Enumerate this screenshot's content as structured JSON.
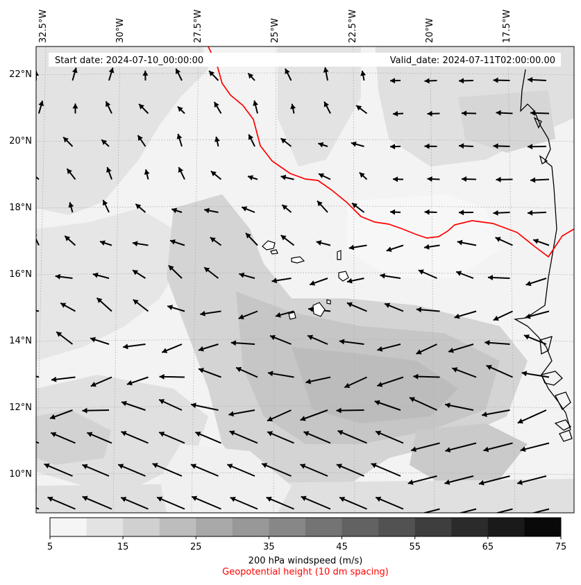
{
  "header": {
    "start_date": "Start date: 2024-07-10_00:00:00",
    "valid_date": "Valid_date: 2024-07-11T02:00:00.00"
  },
  "axes": {
    "lon_labels": [
      "32.5°W",
      "30°W",
      "27.5°W",
      "25°W",
      "22.5°W",
      "20°W",
      "17.5°W"
    ],
    "lat_labels": [
      "22°N",
      "20°N",
      "18°N",
      "16°N",
      "14°N",
      "12°N",
      "10°N"
    ]
  },
  "colorbar": {
    "ticks": [
      "5",
      "15",
      "25",
      "35",
      "45",
      "55",
      "65",
      "75"
    ],
    "label": "200 hPa windspeed (m/s)",
    "sublabel": "Geopotential height (10 dm spacing)",
    "colors": [
      "#f5f5f5",
      "#e3e3e3",
      "#d0d0d0",
      "#bdbdbd",
      "#a9a9a9",
      "#989898",
      "#878787",
      "#747474",
      "#626262",
      "#525252",
      "#3e3e3e",
      "#2b2b2b",
      "#1a1a1a",
      "#090909"
    ]
  },
  "colors": {
    "contour": "#ff0000",
    "coastline": "#000000",
    "background_field": "#f3f3f3"
  }
}
